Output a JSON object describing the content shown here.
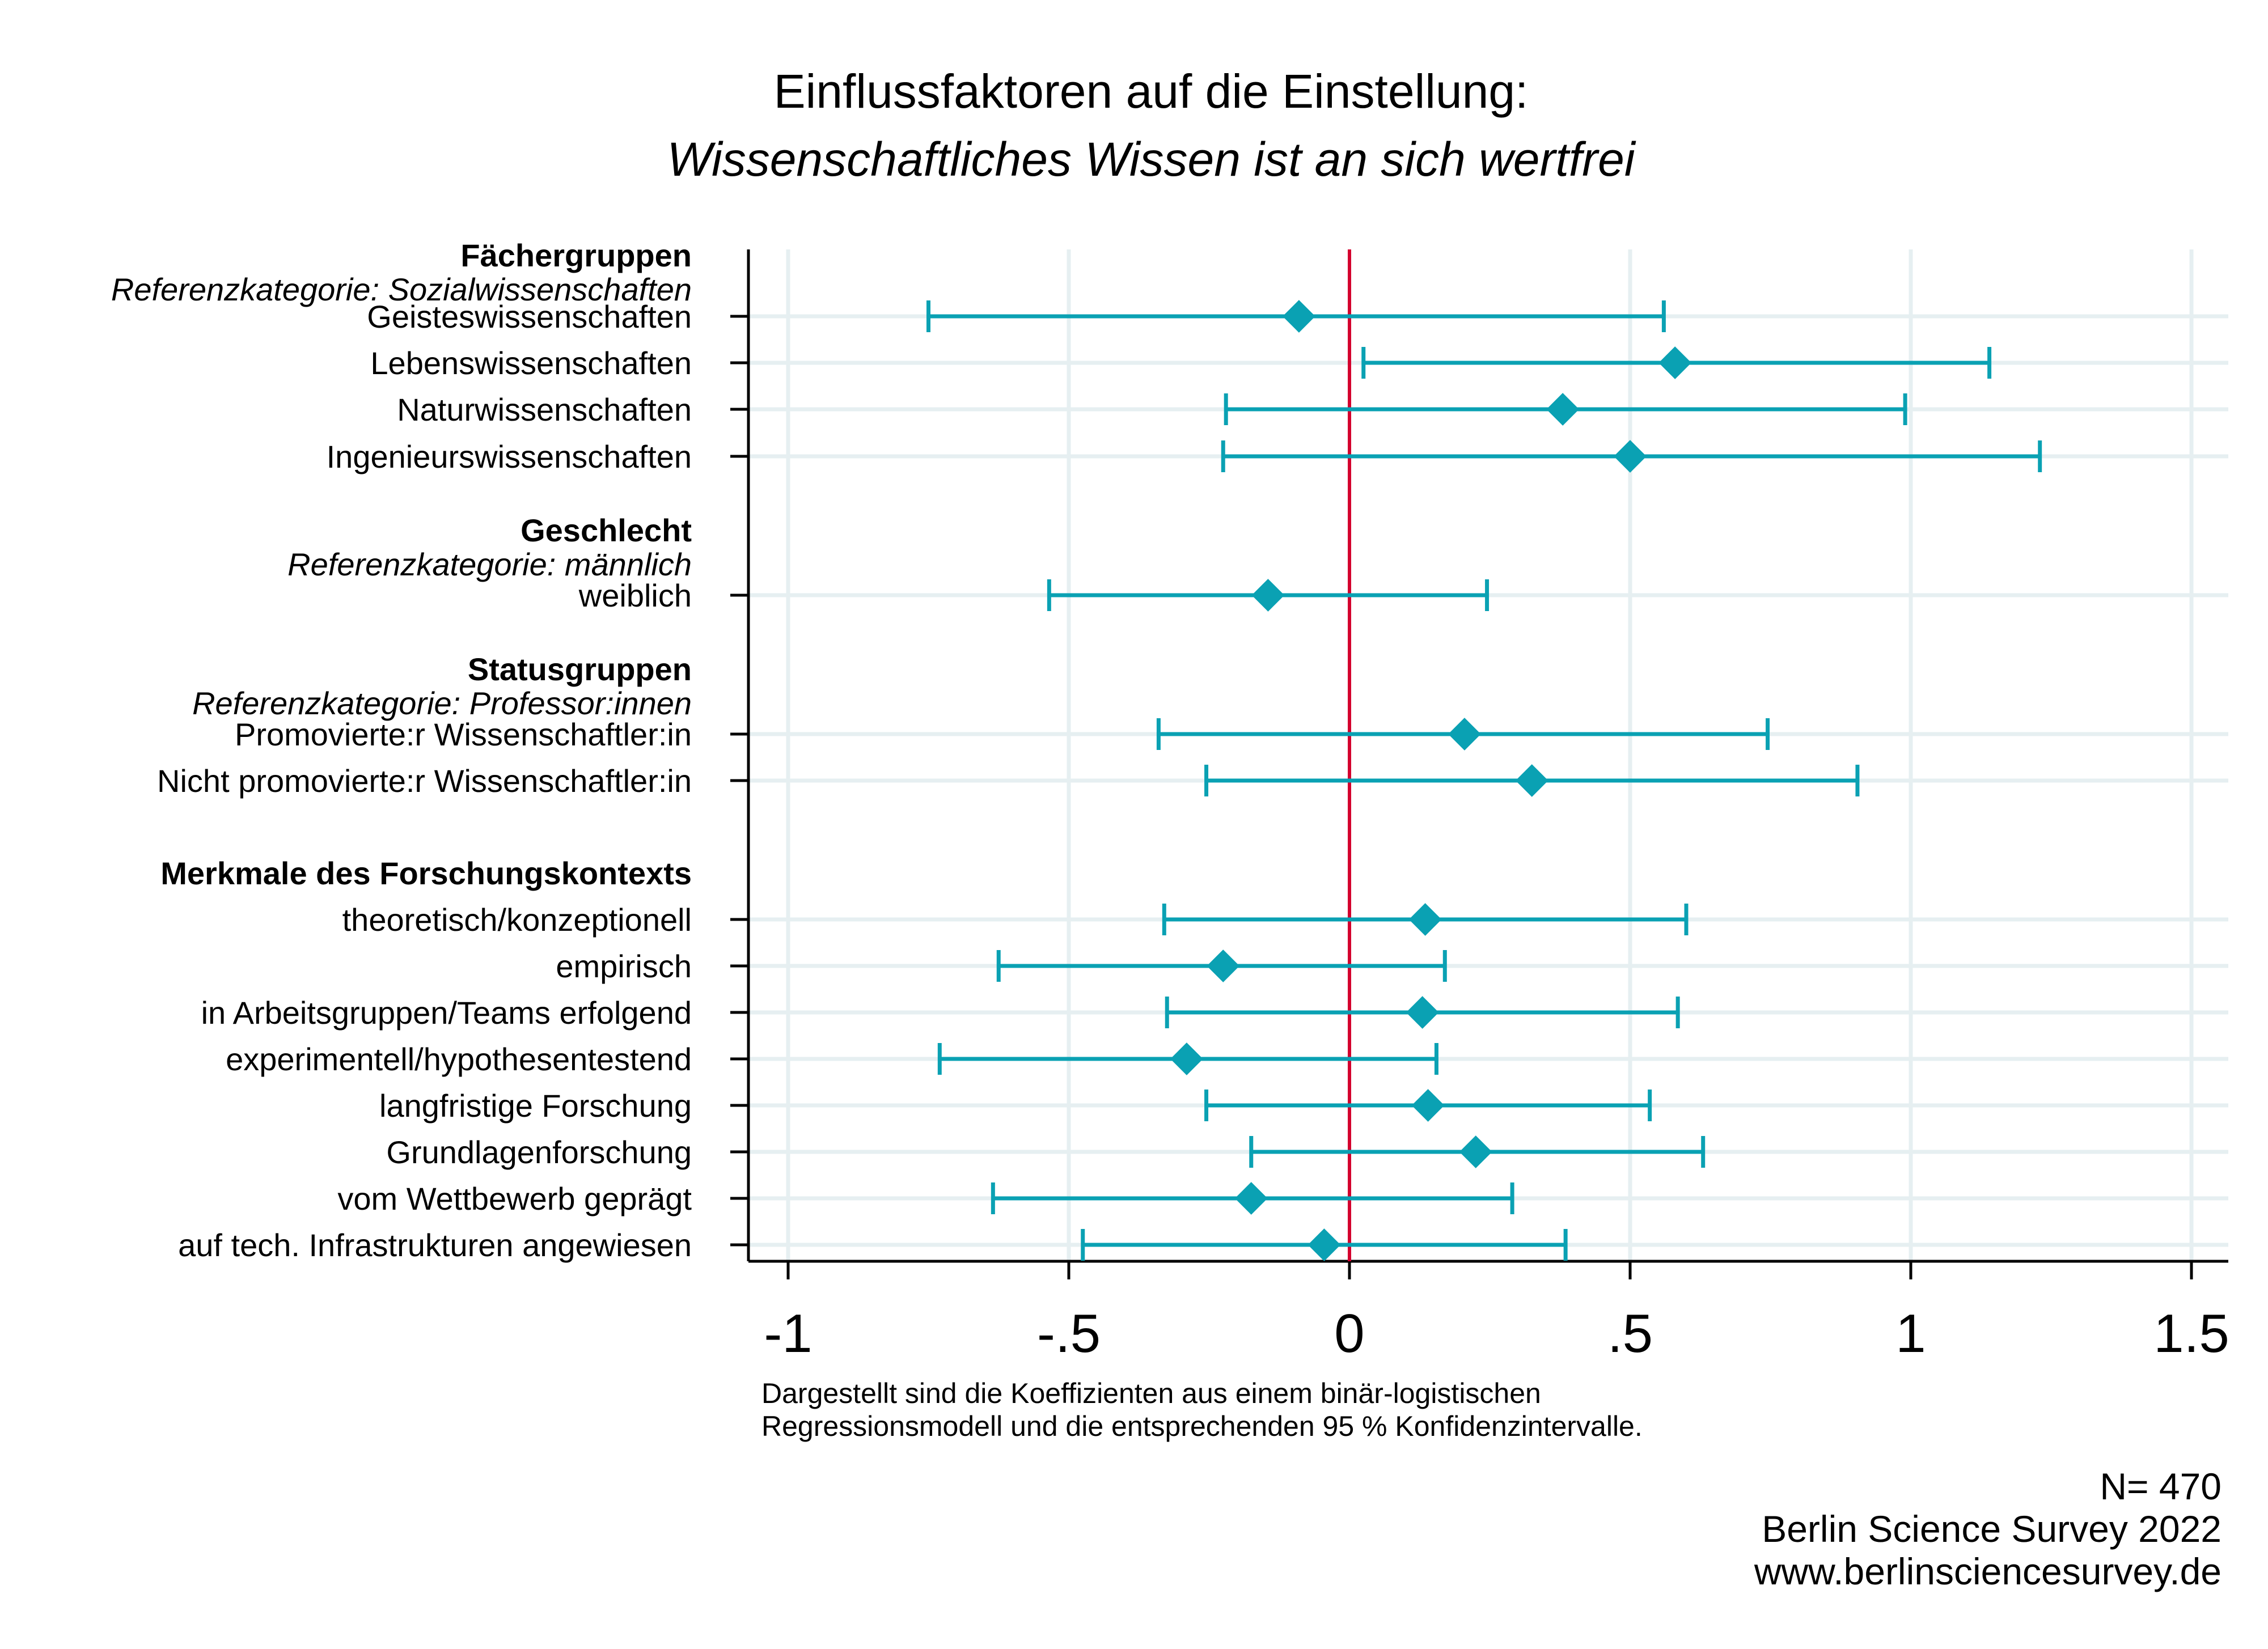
{
  "colors": {
    "marker": "#0AA1B3",
    "reference_line": "#D4002E",
    "grid": "#E6EFF1",
    "axis": "#000000",
    "text": "#000000"
  },
  "chart_data": {
    "type": "scatter",
    "subtype": "coefficient-plot",
    "title": "Einflussfaktoren auf die Einstellung:",
    "subtitle": "Wissenschaftliches Wissen ist an sich wertfrei",
    "xlim": [
      -1.07,
      1.57
    ],
    "xticks": [
      {
        "value": -1,
        "label": "-1"
      },
      {
        "value": -0.5,
        "label": "-.5"
      },
      {
        "value": 0,
        "label": "0"
      },
      {
        "value": 0.5,
        "label": ".5"
      },
      {
        "value": 1,
        "label": "1"
      },
      {
        "value": 1.5,
        "label": "1.5"
      }
    ],
    "reference_value": 0,
    "grid": true,
    "marker": "diamond",
    "groups": [
      {
        "heading": "Fächergruppen",
        "reference": "Referenzkategorie: Sozialwissenschaften",
        "items": [
          {
            "label": "Geisteswissenschaften",
            "estimate": -0.09,
            "ci_low": -0.75,
            "ci_high": 0.56
          },
          {
            "label": "Lebenswissenschaften",
            "estimate": 0.58,
            "ci_low": 0.025,
            "ci_high": 1.14
          },
          {
            "label": "Naturwissenschaften",
            "estimate": 0.38,
            "ci_low": -0.22,
            "ci_high": 0.99
          },
          {
            "label": "Ingenieurswissenschaften",
            "estimate": 0.5,
            "ci_low": -0.225,
            "ci_high": 1.23
          }
        ]
      },
      {
        "heading": "Geschlecht",
        "reference": "Referenzkategorie: männlich",
        "items": [
          {
            "label": "weiblich",
            "estimate": -0.145,
            "ci_low": -0.535,
            "ci_high": 0.245
          }
        ]
      },
      {
        "heading": "Statusgruppen",
        "reference": "Referenzkategorie: Professor:innen",
        "items": [
          {
            "label": "Promovierte:r Wissenschaftler:in",
            "estimate": 0.205,
            "ci_low": -0.34,
            "ci_high": 0.745
          },
          {
            "label": "Nicht promovierte:r Wissenschaftler:in",
            "estimate": 0.325,
            "ci_low": -0.255,
            "ci_high": 0.905
          }
        ]
      },
      {
        "heading": "Merkmale des Forschungskontexts",
        "reference": "",
        "items": [
          {
            "label": "theoretisch/konzeptionell",
            "estimate": 0.135,
            "ci_low": -0.33,
            "ci_high": 0.6
          },
          {
            "label": "empirisch",
            "estimate": -0.225,
            "ci_low": -0.625,
            "ci_high": 0.17
          },
          {
            "label": "in Arbeitsgruppen/Teams erfolgend",
            "estimate": 0.13,
            "ci_low": -0.325,
            "ci_high": 0.585
          },
          {
            "label": "experimentell/hypothesentestend",
            "estimate": -0.29,
            "ci_low": -0.73,
            "ci_high": 0.155
          },
          {
            "label": "langfristige Forschung",
            "estimate": 0.14,
            "ci_low": -0.255,
            "ci_high": 0.535
          },
          {
            "label": "Grundlagenforschung",
            "estimate": 0.225,
            "ci_low": -0.175,
            "ci_high": 0.63
          },
          {
            "label": "vom Wettbewerb geprägt",
            "estimate": -0.175,
            "ci_low": -0.635,
            "ci_high": 0.29
          },
          {
            "label": "auf tech. Infrastrukturen angewiesen",
            "estimate": -0.045,
            "ci_low": -0.475,
            "ci_high": 0.385
          }
        ]
      }
    ],
    "note_lines": [
      "Dargestellt sind die Koeffizienten aus einem binär-logistischen",
      "Regressionsmodell und die entsprechenden 95 % Konfidenzintervalle."
    ],
    "source_lines": [
      "N= 470",
      "Berlin Science Survey 2022",
      "www.berlinsciencesurvey.de"
    ]
  }
}
